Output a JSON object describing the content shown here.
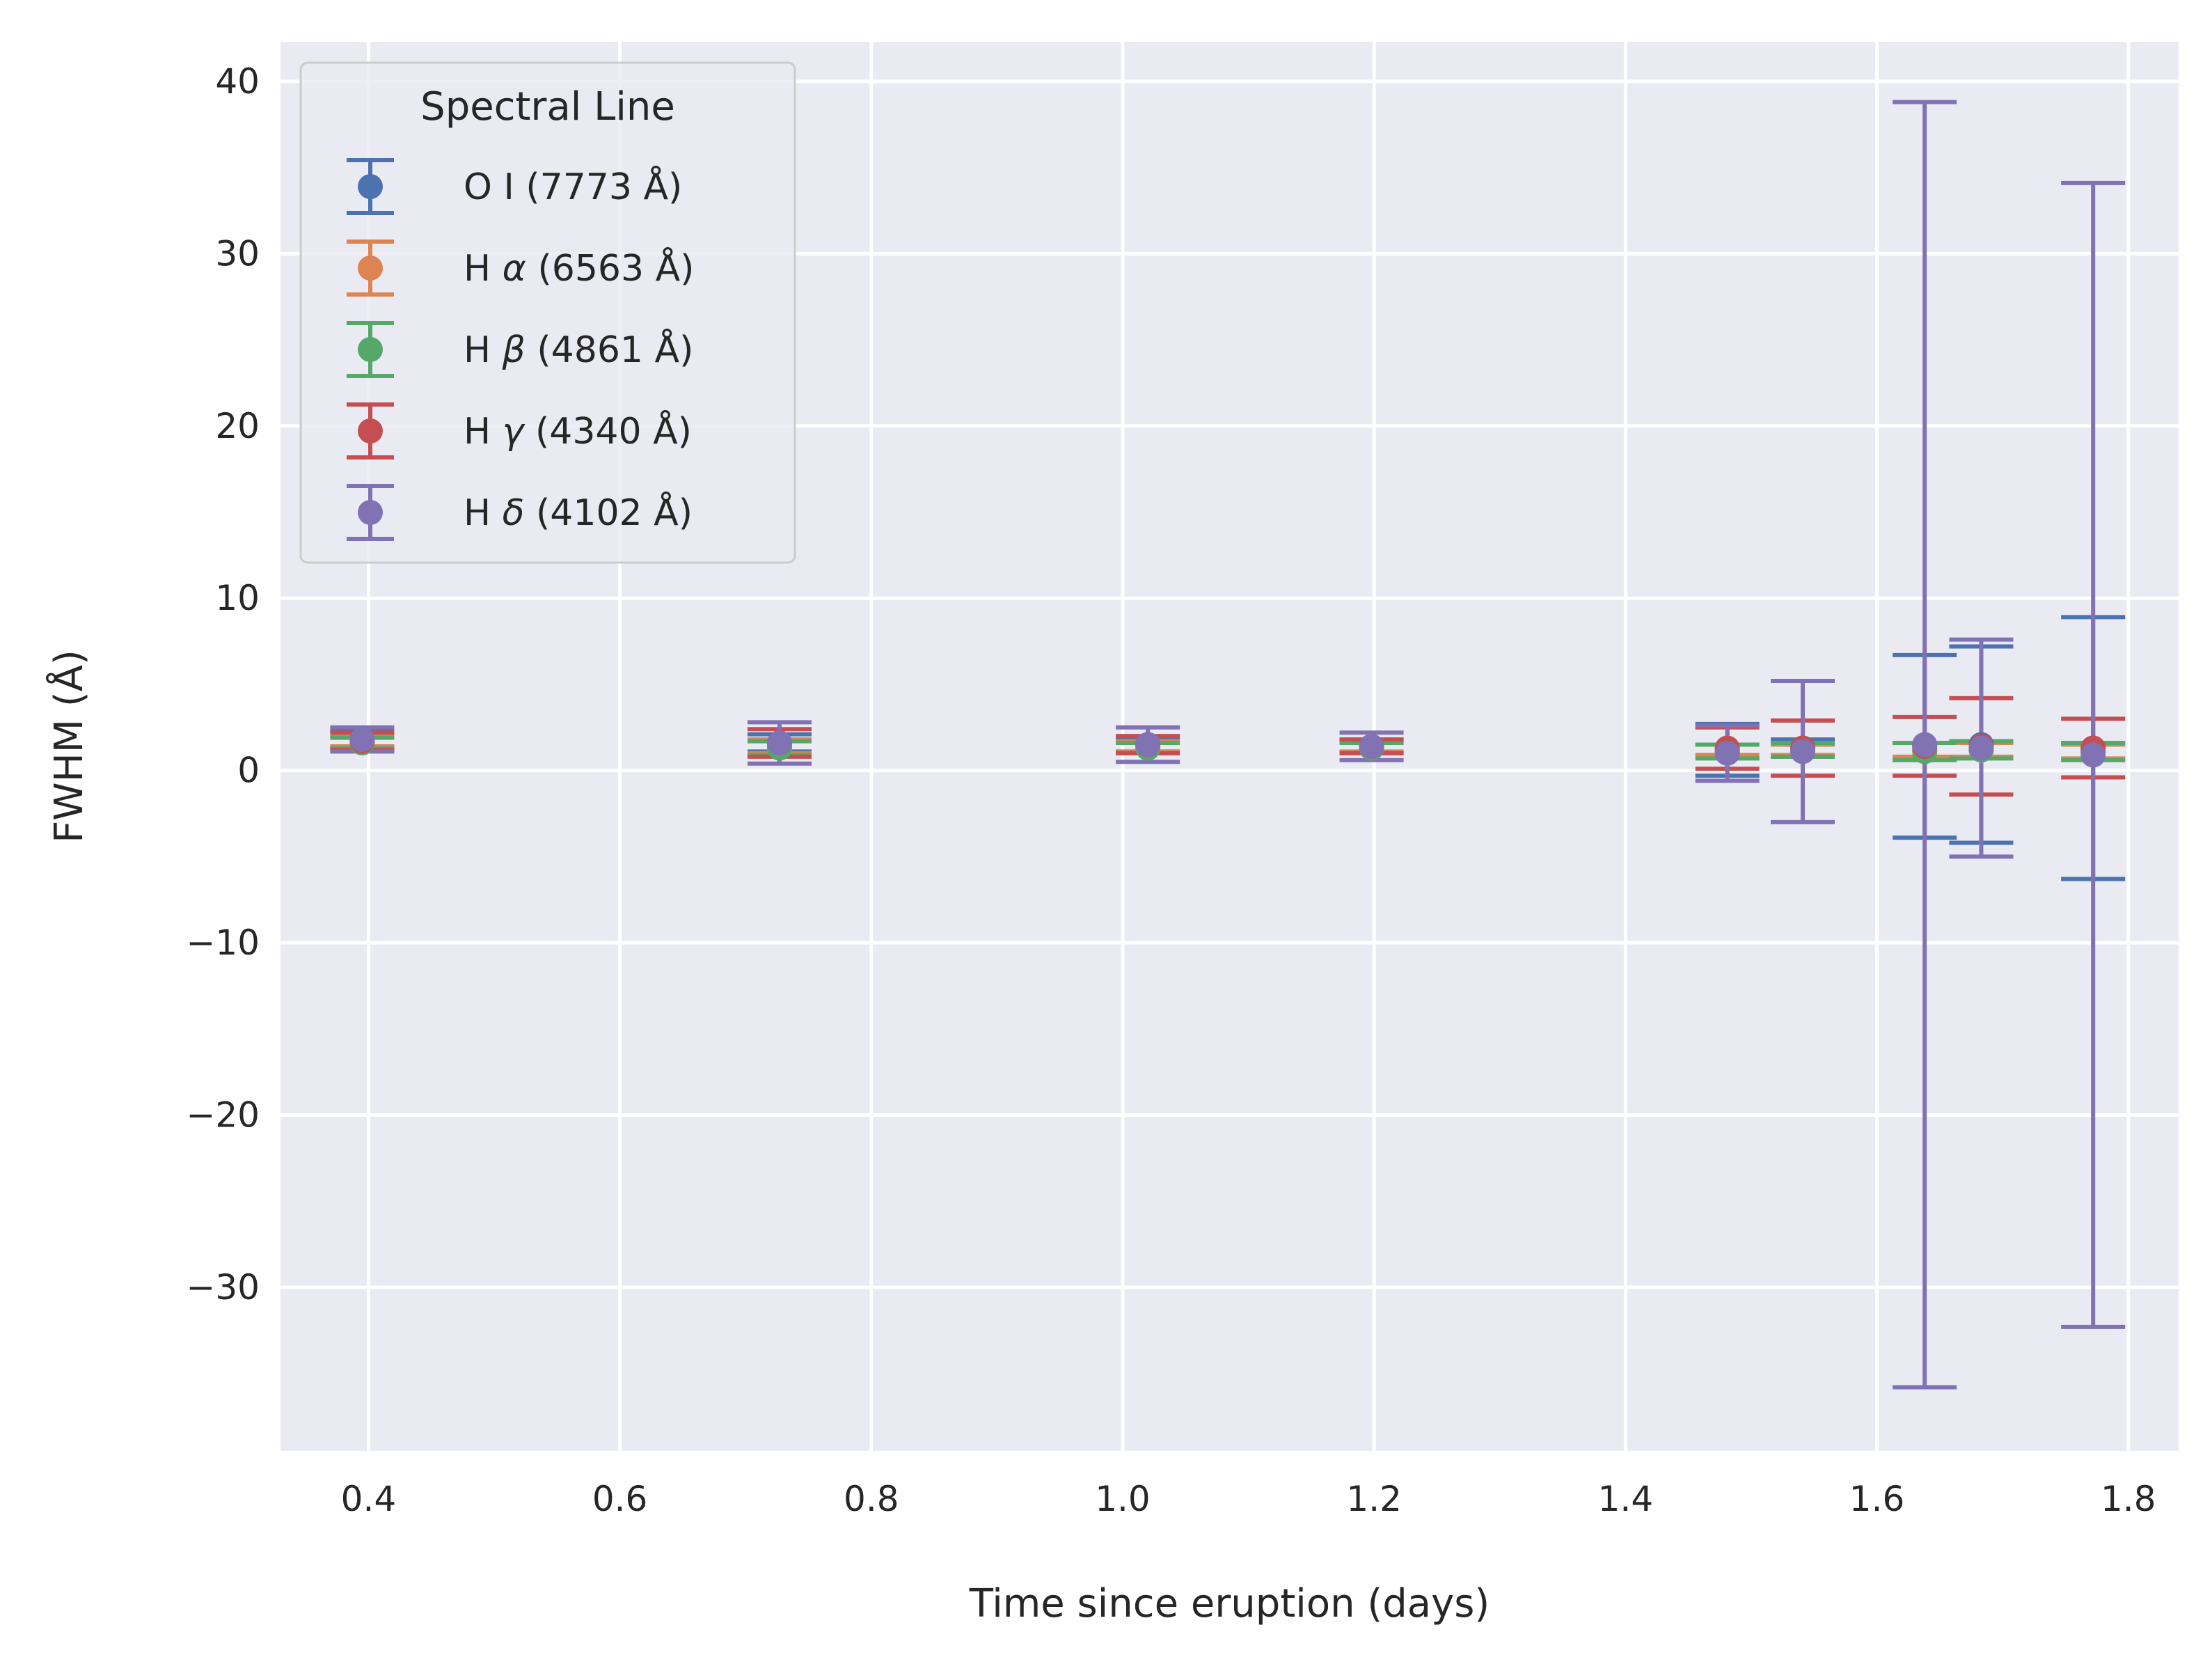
{
  "chart_data": {
    "type": "scatter",
    "subtype": "errorbar",
    "title": "",
    "xlabel": "Time since eruption (days)",
    "ylabel": "FWHM (Å)",
    "xlim": [
      0.33,
      1.84
    ],
    "ylim": [
      -39.5,
      42.3
    ],
    "xticks": [
      0.4,
      0.6,
      0.8,
      1.0,
      1.2,
      1.4,
      1.6,
      1.8
    ],
    "xtick_labels": [
      "0.4",
      "0.6",
      "0.8",
      "1.0",
      "1.2",
      "1.4",
      "1.6",
      "1.8"
    ],
    "yticks": [
      -30,
      -20,
      -10,
      0,
      10,
      20,
      30,
      40
    ],
    "ytick_labels": [
      "−30",
      "−20",
      "−10",
      "0",
      "10",
      "20",
      "30",
      "40"
    ],
    "grid": true,
    "background": "#eaeaf2",
    "legend": {
      "title": "Spectral Line",
      "position": "top-left"
    },
    "series": [
      {
        "name": "O I (7773 Å)",
        "label_main": "O I (7773 Å)",
        "label_sym": "",
        "label_rest": "",
        "color": "#4c72b0",
        "x": [
          0.395,
          0.727,
          1.02,
          1.198,
          1.481,
          1.541,
          1.638,
          1.683,
          1.772
        ],
        "y": [
          1.8,
          1.6,
          1.5,
          1.4,
          1.2,
          1.3,
          1.4,
          1.5,
          1.3
        ],
        "yerr": [
          0.5,
          0.5,
          0.4,
          0.4,
          1.5,
          0.5,
          5.3,
          5.7,
          7.6
        ]
      },
      {
        "name": "H α (6563 Å)",
        "label_main": "H ",
        "label_sym": "α",
        "label_rest": " (6563 Å)",
        "color": "#dd8452",
        "x": [
          0.395,
          0.727,
          1.02,
          1.198,
          1.481,
          1.541,
          1.638,
          1.683,
          1.772
        ],
        "y": [
          1.7,
          1.4,
          1.4,
          1.4,
          1.2,
          1.2,
          1.2,
          1.2,
          1.1
        ],
        "yerr": [
          0.3,
          0.4,
          0.3,
          0.3,
          0.3,
          0.3,
          0.4,
          0.4,
          0.4
        ]
      },
      {
        "name": "H β (4861 Å)",
        "label_main": "H ",
        "label_sym": "β",
        "label_rest": " (4861 Å)",
        "color": "#55a868",
        "x": [
          0.395,
          0.727,
          1.02,
          1.198,
          1.481,
          1.541,
          1.638,
          1.683,
          1.772
        ],
        "y": [
          1.6,
          1.3,
          1.3,
          1.3,
          1.1,
          1.2,
          1.1,
          1.2,
          1.1
        ],
        "yerr": [
          0.3,
          0.4,
          0.3,
          0.3,
          0.4,
          0.4,
          0.5,
          0.5,
          0.5
        ]
      },
      {
        "name": "H γ (4340 Å)",
        "label_main": "H ",
        "label_sym": "γ",
        "label_rest": " (4340 Å)",
        "color": "#c44e52",
        "x": [
          0.395,
          0.727,
          1.02,
          1.198,
          1.481,
          1.541,
          1.638,
          1.683,
          1.772
        ],
        "y": [
          1.7,
          1.6,
          1.5,
          1.4,
          1.3,
          1.3,
          1.4,
          1.4,
          1.3
        ],
        "yerr": [
          0.5,
          0.8,
          0.5,
          0.4,
          1.2,
          1.6,
          1.7,
          2.8,
          1.7
        ]
      },
      {
        "name": "H δ (4102 Å)",
        "label_main": "H ",
        "label_sym": "δ",
        "label_rest": " (4102 Å)",
        "color": "#8172b3",
        "x": [
          0.395,
          0.727,
          1.02,
          1.198,
          1.481,
          1.541,
          1.638,
          1.683,
          1.772
        ],
        "y": [
          1.8,
          1.6,
          1.5,
          1.4,
          1.0,
          1.1,
          1.5,
          1.3,
          0.9
        ],
        "yerr": [
          0.7,
          1.2,
          1.0,
          0.8,
          1.6,
          4.1,
          37.3,
          6.3,
          33.2
        ]
      }
    ]
  }
}
